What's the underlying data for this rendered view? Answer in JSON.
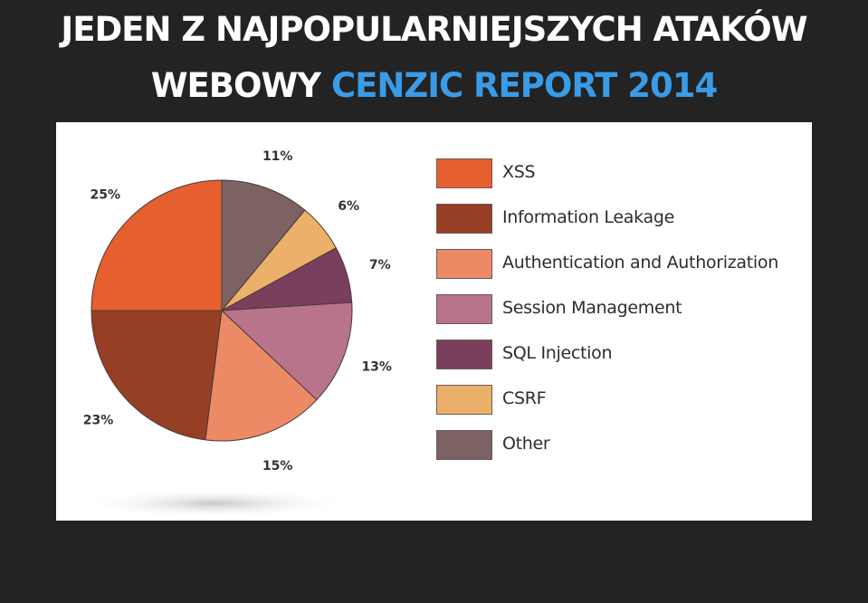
{
  "header": {
    "line1": "JEDEN Z NAJPOPULARNIEJSZYCH ATAKÓW",
    "line2_prefix": "WEBOWY",
    "line2_accent": "CENZIC REPORT 2014"
  },
  "chart_data": {
    "type": "pie",
    "categories": [
      "XSS",
      "Information Leakage",
      "Authentication and Authorization",
      "Session Management",
      "SQL Injection",
      "CSRF",
      "Other"
    ],
    "values": [
      25,
      23,
      15,
      13,
      7,
      6,
      11
    ],
    "value_labels": [
      "25%",
      "23%",
      "15%",
      "13%",
      "7%",
      "6%",
      "11%"
    ],
    "colors": [
      "#e65f2f",
      "#963f25",
      "#ec8a66",
      "#b8748a",
      "#7b3f5e",
      "#ebb06a",
      "#7c6262"
    ],
    "title": "",
    "legend_position": "right"
  }
}
